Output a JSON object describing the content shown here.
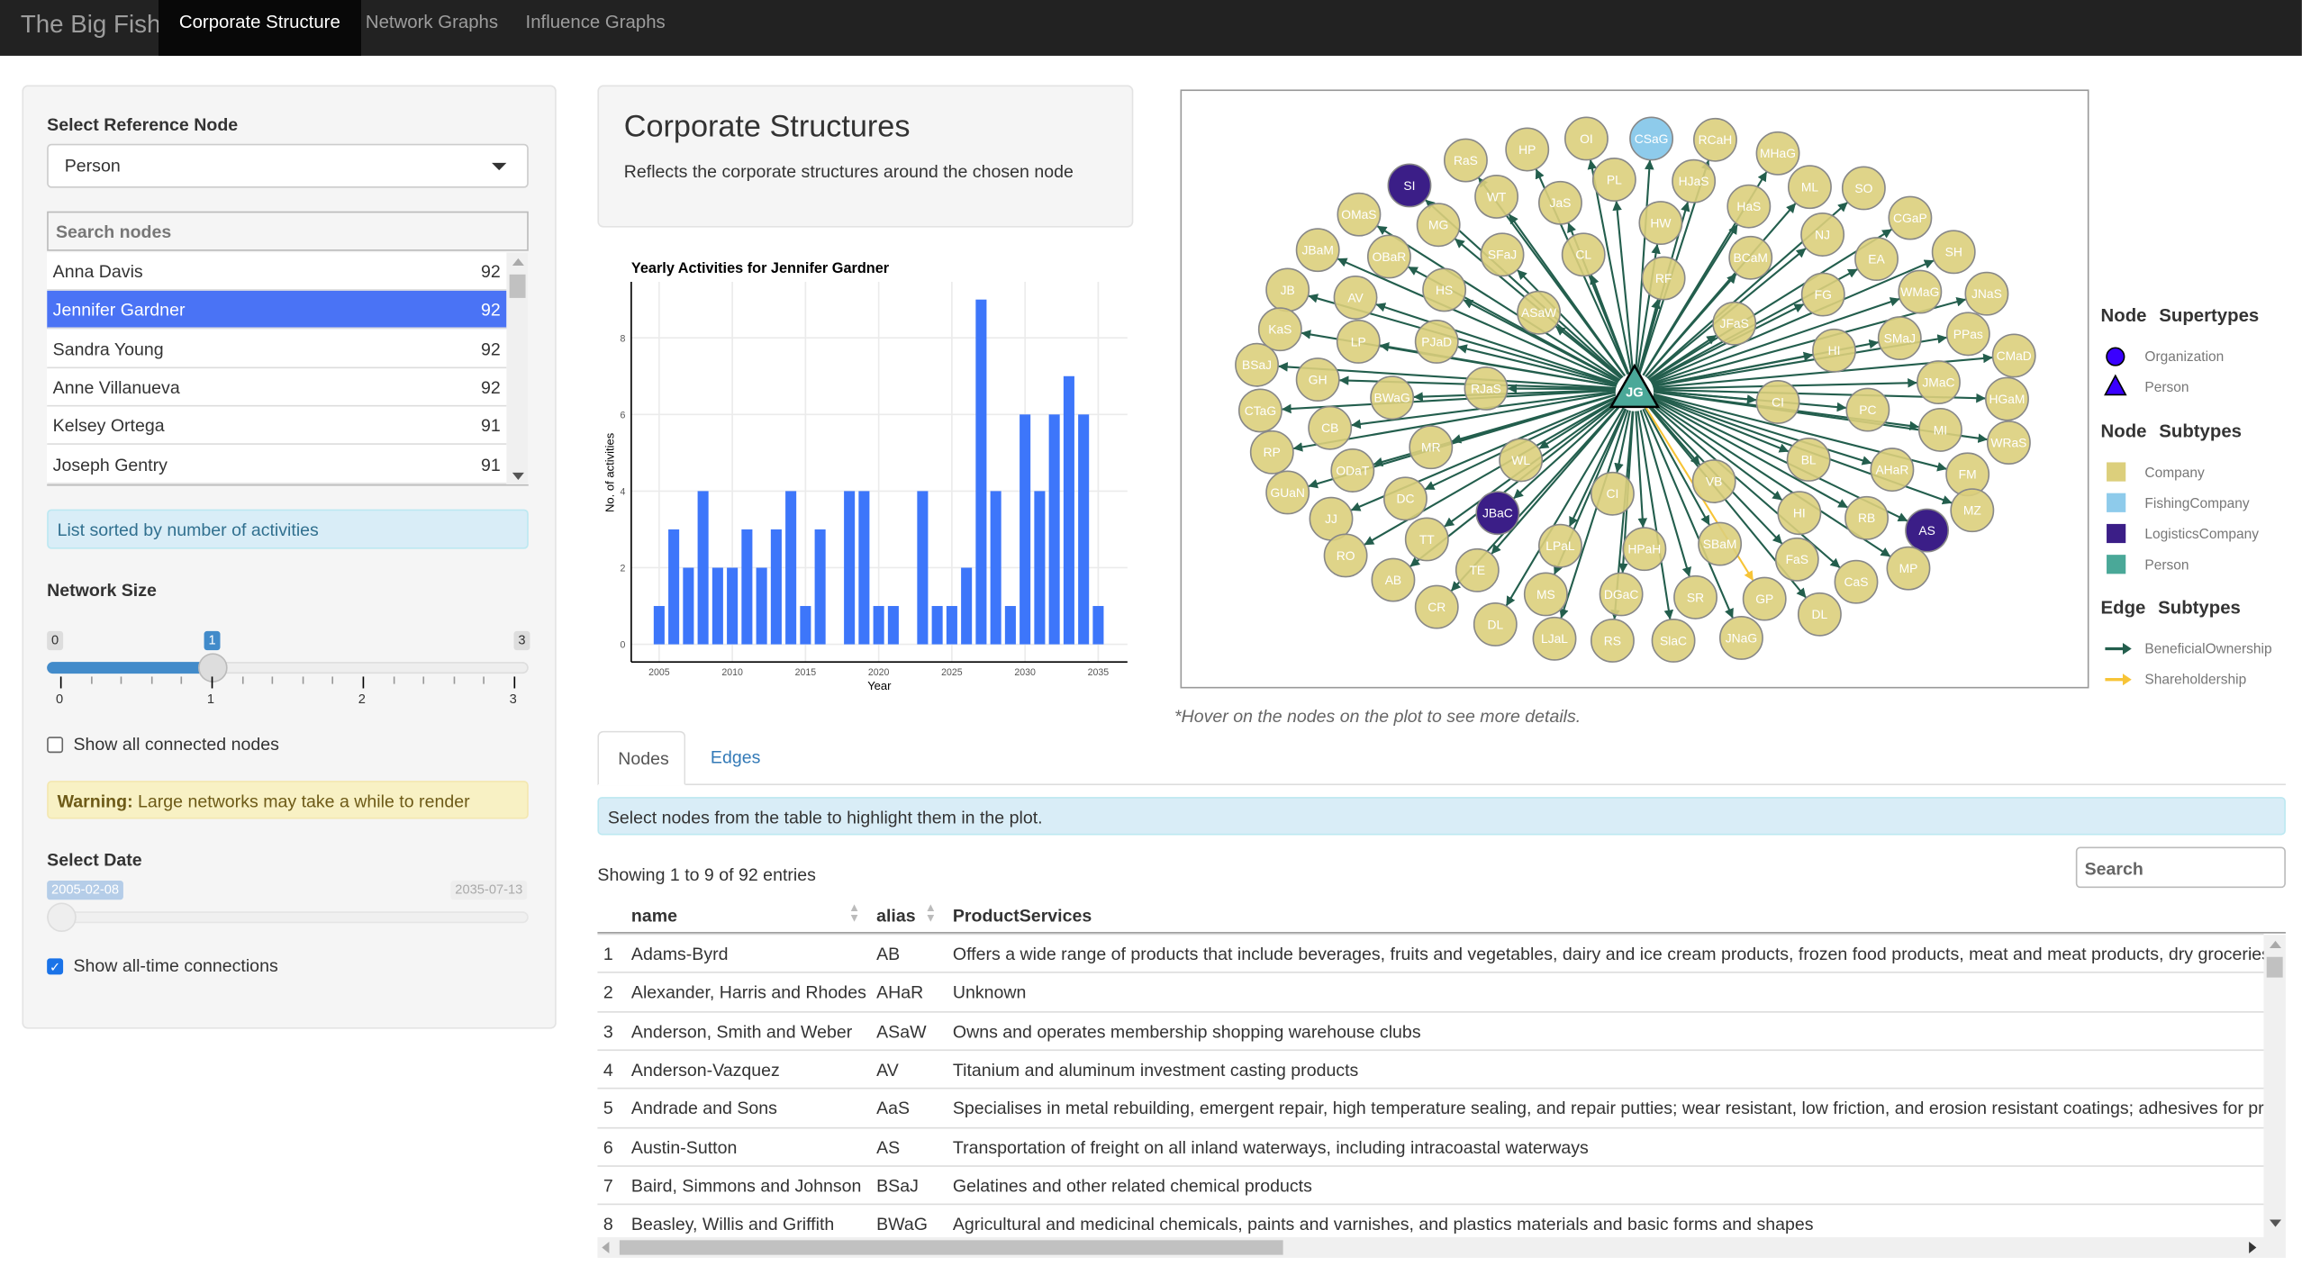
{
  "navbar": {
    "brand": "The Big Fish",
    "tabs": [
      {
        "label": "Corporate Structure",
        "active": true
      },
      {
        "label": "Network Graphs"
      },
      {
        "label": "Influence Graphs"
      }
    ]
  },
  "sidebar": {
    "ref_label": "Select Reference Node",
    "ref_value": "Person",
    "search_placeholder": "Search nodes",
    "nodes": [
      {
        "name": "Anna Davis",
        "count": "92"
      },
      {
        "name": "Jennifer Gardner",
        "count": "92",
        "selected": true
      },
      {
        "name": "Sandra Young",
        "count": "92"
      },
      {
        "name": "Anne Villanueva",
        "count": "92"
      },
      {
        "name": "Kelsey Ortega",
        "count": "91"
      },
      {
        "name": "Joseph Gentry",
        "count": "91"
      }
    ],
    "sorted_note": "List sorted by number of activities",
    "network_size_label": "Network Size",
    "network_size": {
      "min": "0",
      "max": "3",
      "value": "1",
      "ticks": [
        "0",
        "1",
        "2",
        "3"
      ]
    },
    "show_all_label": "Show all connected nodes",
    "show_all_checked": false,
    "warning_bold": "Warning:",
    "warning_text": " Large networks may take a while to render",
    "date_label": "Select Date",
    "date_value": "2005-02-08",
    "date_max": "2035-07-13",
    "alltime_label": "Show all-time connections",
    "alltime_checked": true
  },
  "header": {
    "title": "Corporate Structures",
    "subtitle": "Reflects the corporate structures around the chosen node"
  },
  "chart_data": {
    "type": "bar",
    "title": "Yearly Activities for Jennifer Gardner",
    "xlabel": "Year",
    "ylabel": "No. of activities",
    "x": [
      2005,
      2006,
      2007,
      2008,
      2009,
      2010,
      2011,
      2012,
      2013,
      2014,
      2015,
      2016,
      2018,
      2019,
      2020,
      2021,
      2023,
      2024,
      2025,
      2026,
      2027,
      2028,
      2029,
      2030,
      2031,
      2032,
      2033,
      2034,
      2035
    ],
    "values": [
      1,
      3,
      2,
      4,
      2,
      2,
      3,
      2,
      3,
      4,
      1,
      3,
      4,
      4,
      1,
      1,
      4,
      1,
      1,
      2,
      9,
      4,
      1,
      6,
      4,
      6,
      7,
      6,
      1
    ],
    "xticks": [
      "2005",
      "2010",
      "2015",
      "2020",
      "2025",
      "2030",
      "2035"
    ],
    "yticks": [
      "0",
      "2",
      "4",
      "6",
      "8"
    ],
    "color": "#3d76fa",
    "grid": true
  },
  "network": {
    "center": {
      "label": "JG",
      "type": "Person"
    },
    "nodes": [
      {
        "label": "SI",
        "type": "LogisticsCompany"
      },
      {
        "label": "RaS",
        "type": "Company"
      },
      {
        "label": "HP",
        "type": "Company"
      },
      {
        "label": "OI",
        "type": "Company"
      },
      {
        "label": "CSaG",
        "type": "FishingCompany"
      },
      {
        "label": "RCaH",
        "type": "Company"
      },
      {
        "label": "MHaG",
        "type": "Company"
      },
      {
        "label": "WT",
        "type": "Company"
      },
      {
        "label": "PL",
        "type": "Company"
      },
      {
        "label": "HJaS",
        "type": "Company"
      },
      {
        "label": "JaS",
        "type": "Company"
      },
      {
        "label": "ML",
        "type": "Company"
      },
      {
        "label": "SO",
        "type": "Company"
      },
      {
        "label": "OMaS",
        "type": "Company"
      },
      {
        "label": "MG",
        "type": "Company"
      },
      {
        "label": "HaS",
        "type": "Company"
      },
      {
        "label": "HW",
        "type": "Company"
      },
      {
        "label": "CGaP",
        "type": "Company"
      },
      {
        "label": "NJ",
        "type": "Company"
      },
      {
        "label": "JBaM",
        "type": "Company"
      },
      {
        "label": "OBaR",
        "type": "Company"
      },
      {
        "label": "SFaJ",
        "type": "Company"
      },
      {
        "label": "CL",
        "type": "Company"
      },
      {
        "label": "BCaM",
        "type": "Company"
      },
      {
        "label": "SH",
        "type": "Company"
      },
      {
        "label": "EA",
        "type": "Company"
      },
      {
        "label": "RF",
        "type": "Company"
      },
      {
        "label": "HS",
        "type": "Company"
      },
      {
        "label": "JB",
        "type": "Company"
      },
      {
        "label": "AV",
        "type": "Company"
      },
      {
        "label": "FG",
        "type": "Company"
      },
      {
        "label": "WMaG",
        "type": "Company"
      },
      {
        "label": "JNaS",
        "type": "Company"
      },
      {
        "label": "ASaW",
        "type": "Company"
      },
      {
        "label": "JFaS",
        "type": "Company"
      },
      {
        "label": "KaS",
        "type": "Company"
      },
      {
        "label": "LP",
        "type": "Company"
      },
      {
        "label": "PJaD",
        "type": "Company"
      },
      {
        "label": "SMaJ",
        "type": "Company"
      },
      {
        "label": "PPas",
        "type": "Company"
      },
      {
        "label": "HI",
        "type": "Company"
      },
      {
        "label": "CMaD",
        "type": "Company"
      },
      {
        "label": "BSaJ",
        "type": "Company"
      },
      {
        "label": "GH",
        "type": "Company"
      },
      {
        "label": "RJaS",
        "type": "Company"
      },
      {
        "label": "JMaC",
        "type": "Company"
      },
      {
        "label": "BWaG",
        "type": "Company"
      },
      {
        "label": "HGaM",
        "type": "Company"
      },
      {
        "label": "CTaG",
        "type": "Company"
      },
      {
        "label": "CI",
        "type": "Company"
      },
      {
        "label": "PC",
        "type": "Company"
      },
      {
        "label": "CB",
        "type": "Company"
      },
      {
        "label": "MI",
        "type": "Company"
      },
      {
        "label": "WRaS",
        "type": "Company"
      },
      {
        "label": "RP",
        "type": "Company"
      },
      {
        "label": "MR",
        "type": "Company"
      },
      {
        "label": "WL",
        "type": "Company"
      },
      {
        "label": "BL",
        "type": "Company"
      },
      {
        "label": "AHaR",
        "type": "Company"
      },
      {
        "label": "FM",
        "type": "Company"
      },
      {
        "label": "ODaT",
        "type": "Company"
      },
      {
        "label": "VB",
        "type": "Company"
      },
      {
        "label": "GUaN",
        "type": "Company"
      },
      {
        "label": "DC",
        "type": "Company"
      },
      {
        "label": "CI",
        "type": "Company"
      },
      {
        "label": "JBaC",
        "type": "LogisticsCompany"
      },
      {
        "label": "HI",
        "type": "Company"
      },
      {
        "label": "RB",
        "type": "Company"
      },
      {
        "label": "AS",
        "type": "LogisticsCompany"
      },
      {
        "label": "MZ",
        "type": "Company"
      },
      {
        "label": "JJ",
        "type": "Company"
      },
      {
        "label": "TT",
        "type": "Company"
      },
      {
        "label": "LPaL",
        "type": "Company"
      },
      {
        "label": "HPaH",
        "type": "Company"
      },
      {
        "label": "SBaM",
        "type": "Company"
      },
      {
        "label": "RO",
        "type": "Company"
      },
      {
        "label": "TE",
        "type": "Company"
      },
      {
        "label": "FaS",
        "type": "Company"
      },
      {
        "label": "CaS",
        "type": "Company"
      },
      {
        "label": "MP",
        "type": "Company"
      },
      {
        "label": "AB",
        "type": "Company"
      },
      {
        "label": "MS",
        "type": "Company"
      },
      {
        "label": "DGaC",
        "type": "Company"
      },
      {
        "label": "SR",
        "type": "Company"
      },
      {
        "label": "GP",
        "type": "Company",
        "edge": "Shareholdership"
      },
      {
        "label": "CR",
        "type": "Company"
      },
      {
        "label": "DL",
        "type": "Company"
      },
      {
        "label": "DL",
        "type": "Company"
      },
      {
        "label": "LJaL",
        "type": "Company"
      },
      {
        "label": "RS",
        "type": "Company"
      },
      {
        "label": "SlaC",
        "type": "Company"
      },
      {
        "label": "JNaG",
        "type": "Company"
      }
    ],
    "hover_note": "*Hover on the nodes on the plot to see more details.",
    "colors": {
      "Company": "#dccf7c",
      "FishingCompany": "#8ecbeb",
      "LogisticsCompany": "#3b1e87",
      "Person": "#4aa898",
      "BeneficialOwnership": "#235e4d",
      "Shareholdership": "#f7c437",
      "supertype": "#3a00ff"
    }
  },
  "legend": {
    "supertypes_title": "Node   Supertypes",
    "supertypes": [
      "Organization",
      "Person"
    ],
    "subtypes_title": "Node   Subtypes",
    "subtypes": [
      "Company",
      "FishingCompany",
      "LogisticsCompany",
      "Person"
    ],
    "edges_title": "Edge   Subtypes",
    "edges": [
      "BeneficialOwnership",
      "Shareholdership"
    ]
  },
  "tabs": [
    {
      "label": "Nodes",
      "active": true
    },
    {
      "label": "Edges"
    }
  ],
  "table_info": "Select nodes from the table to highlight them in the plot.",
  "table_showing": "Showing 1 to 9 of 92 entries",
  "table_search_placeholder": "Search",
  "table": {
    "columns": [
      "",
      "name",
      "alias",
      "ProductServices"
    ],
    "rows": [
      [
        "1",
        "Adams-Byrd",
        "AB",
        "Offers a wide range of products that include beverages, fruits and vegetables, dairy and ice cream products, frozen food products, meat and meat products, dry groceries, bakery"
      ],
      [
        "2",
        "Alexander, Harris and Rhodes",
        "AHaR",
        "Unknown"
      ],
      [
        "3",
        "Anderson, Smith and Weber",
        "ASaW",
        "Owns and operates membership shopping warehouse clubs"
      ],
      [
        "4",
        "Anderson-Vazquez",
        "AV",
        "Titanium and aluminum investment casting products"
      ],
      [
        "5",
        "Andrade and Sons",
        "AaS",
        "Specialises in metal rebuilding, emergent repair, high temperature sealing, and repair putties; wear resistant, low friction, and erosion resistant coatings; adhesives for precision"
      ],
      [
        "6",
        "Austin-Sutton",
        "AS",
        "Transportation of freight on all inland waterways, including intracoastal waterways"
      ],
      [
        "7",
        "Baird, Simmons and Johnson",
        "BSaJ",
        "Gelatines and other related chemical products"
      ],
      [
        "8",
        "Beasley, Willis and Griffith",
        "BWaG",
        "Agricultural and medicinal chemicals, paints and varnishes, and plastics materials and basic forms and shapes"
      ]
    ]
  }
}
